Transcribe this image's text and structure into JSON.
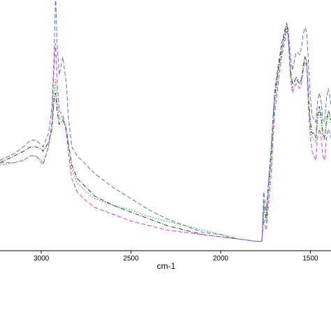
{
  "chart_data": {
    "type": "line",
    "title": "",
    "xlabel": "cm-1",
    "ylabel": "",
    "xlim": [
      3230,
      1385
    ],
    "ylim": [
      0,
      100
    ],
    "x_reversed": true,
    "grid": false,
    "x_ticks": [
      {
        "value": 3000,
        "label": "3000"
      },
      {
        "value": 2500,
        "label": "2500"
      },
      {
        "value": 2000,
        "label": "2000"
      },
      {
        "value": 1500,
        "label": "1500"
      }
    ],
    "series": [
      {
        "color": "#333333",
        "dash": "6,2,1,2",
        "points": [
          [
            3230,
            37
          ],
          [
            3150,
            40
          ],
          [
            3100,
            42
          ],
          [
            3060,
            44
          ],
          [
            3030,
            44
          ],
          [
            3000,
            43
          ],
          [
            2990,
            42
          ],
          [
            2960,
            46
          ],
          [
            2940,
            52
          ],
          [
            2930,
            64
          ],
          [
            2920,
            68
          ],
          [
            2912,
            60
          ],
          [
            2900,
            54
          ],
          [
            2880,
            56
          ],
          [
            2860,
            52
          ],
          [
            2850,
            46
          ],
          [
            2830,
            36
          ],
          [
            2800,
            30
          ],
          [
            2750,
            26
          ],
          [
            2700,
            22
          ],
          [
            2600,
            18
          ],
          [
            2500,
            15
          ],
          [
            2400,
            12
          ],
          [
            2300,
            9
          ],
          [
            2200,
            7
          ],
          [
            2100,
            5
          ],
          [
            2000,
            4
          ],
          [
            1900,
            3
          ],
          [
            1800,
            2
          ],
          [
            1770,
            2
          ],
          [
            1760,
            20
          ],
          [
            1750,
            14
          ],
          [
            1745,
            12
          ],
          [
            1740,
            20
          ],
          [
            1720,
            40
          ],
          [
            1700,
            66
          ],
          [
            1680,
            78
          ],
          [
            1660,
            88
          ],
          [
            1640,
            96
          ],
          [
            1632,
            98
          ],
          [
            1625,
            96
          ],
          [
            1610,
            78
          ],
          [
            1600,
            72
          ],
          [
            1590,
            73
          ],
          [
            1580,
            75
          ],
          [
            1570,
            73
          ],
          [
            1560,
            72
          ],
          [
            1550,
            74
          ],
          [
            1540,
            80
          ],
          [
            1530,
            84
          ],
          [
            1520,
            82
          ],
          [
            1510,
            66
          ],
          [
            1500,
            55
          ],
          [
            1490,
            50
          ],
          [
            1480,
            50
          ],
          [
            1470,
            48
          ],
          [
            1460,
            58
          ],
          [
            1450,
            62
          ],
          [
            1440,
            58
          ],
          [
            1430,
            50
          ],
          [
            1420,
            48
          ],
          [
            1410,
            56
          ],
          [
            1400,
            60
          ],
          [
            1390,
            58
          ],
          [
            1385,
            56
          ]
        ]
      },
      {
        "color": "#5a6fd0",
        "dash": "6,3",
        "points": [
          [
            3230,
            38
          ],
          [
            3150,
            41
          ],
          [
            3100,
            44
          ],
          [
            3060,
            47
          ],
          [
            3030,
            47
          ],
          [
            3000,
            45
          ],
          [
            2990,
            44
          ],
          [
            2960,
            50
          ],
          [
            2940,
            62
          ],
          [
            2930,
            82
          ],
          [
            2920,
            112
          ],
          [
            2912,
            90
          ],
          [
            2900,
            76
          ],
          [
            2880,
            84
          ],
          [
            2860,
            72
          ],
          [
            2850,
            58
          ],
          [
            2830,
            44
          ],
          [
            2800,
            40
          ],
          [
            2750,
            36
          ],
          [
            2700,
            32
          ],
          [
            2600,
            26
          ],
          [
            2500,
            21
          ],
          [
            2400,
            16
          ],
          [
            2300,
            12
          ],
          [
            2200,
            9
          ],
          [
            2100,
            6
          ],
          [
            2000,
            5
          ],
          [
            1900,
            3
          ],
          [
            1800,
            2
          ],
          [
            1770,
            2
          ],
          [
            1760,
            24
          ],
          [
            1750,
            18
          ],
          [
            1745,
            15
          ],
          [
            1740,
            22
          ],
          [
            1720,
            42
          ],
          [
            1700,
            68
          ],
          [
            1680,
            80
          ],
          [
            1660,
            90
          ],
          [
            1640,
            97
          ],
          [
            1632,
            99
          ],
          [
            1625,
            97
          ],
          [
            1610,
            84
          ],
          [
            1600,
            78
          ],
          [
            1590,
            82
          ],
          [
            1580,
            86
          ],
          [
            1570,
            86
          ],
          [
            1560,
            85
          ],
          [
            1550,
            88
          ],
          [
            1540,
            94
          ],
          [
            1530,
            97
          ],
          [
            1520,
            95
          ],
          [
            1510,
            80
          ],
          [
            1500,
            66
          ],
          [
            1490,
            58
          ],
          [
            1480,
            56
          ],
          [
            1470,
            55
          ],
          [
            1460,
            64
          ],
          [
            1450,
            68
          ],
          [
            1440,
            64
          ],
          [
            1430,
            56
          ],
          [
            1420,
            55
          ],
          [
            1410,
            66
          ],
          [
            1400,
            70
          ],
          [
            1390,
            66
          ],
          [
            1385,
            62
          ]
        ]
      },
      {
        "color": "#33b233",
        "dash": "2,2",
        "points": [
          [
            3230,
            36
          ],
          [
            3150,
            37
          ],
          [
            3100,
            38
          ],
          [
            3060,
            40
          ],
          [
            3030,
            40
          ],
          [
            3000,
            38
          ],
          [
            2990,
            37
          ],
          [
            2960,
            44
          ],
          [
            2940,
            52
          ],
          [
            2930,
            66
          ],
          [
            2920,
            74
          ],
          [
            2912,
            65
          ],
          [
            2900,
            56
          ],
          [
            2880,
            58
          ],
          [
            2860,
            52
          ],
          [
            2850,
            46
          ],
          [
            2830,
            34
          ],
          [
            2800,
            28
          ],
          [
            2750,
            24
          ],
          [
            2700,
            21
          ],
          [
            2600,
            18
          ],
          [
            2500,
            16
          ],
          [
            2400,
            13
          ],
          [
            2300,
            11
          ],
          [
            2200,
            9
          ],
          [
            2100,
            7
          ],
          [
            2000,
            5
          ],
          [
            1900,
            3
          ],
          [
            1800,
            2
          ],
          [
            1770,
            2
          ],
          [
            1760,
            16
          ],
          [
            1750,
            12
          ],
          [
            1745,
            10
          ],
          [
            1740,
            16
          ],
          [
            1720,
            36
          ],
          [
            1700,
            62
          ],
          [
            1680,
            76
          ],
          [
            1660,
            86
          ],
          [
            1640,
            94
          ],
          [
            1632,
            97
          ],
          [
            1625,
            95
          ],
          [
            1610,
            76
          ],
          [
            1600,
            70
          ],
          [
            1590,
            72
          ],
          [
            1580,
            75
          ],
          [
            1570,
            74
          ],
          [
            1560,
            73
          ],
          [
            1550,
            74
          ],
          [
            1540,
            80
          ],
          [
            1530,
            84
          ],
          [
            1520,
            82
          ],
          [
            1510,
            64
          ],
          [
            1500,
            52
          ],
          [
            1490,
            48
          ],
          [
            1480,
            47
          ],
          [
            1470,
            46
          ],
          [
            1460,
            56
          ],
          [
            1450,
            60
          ],
          [
            1440,
            56
          ],
          [
            1430,
            48
          ],
          [
            1420,
            47
          ],
          [
            1410,
            55
          ],
          [
            1400,
            58
          ],
          [
            1390,
            56
          ],
          [
            1385,
            54
          ]
        ]
      },
      {
        "color": "#cc44cc",
        "dash": "6,3",
        "points": [
          [
            3230,
            37
          ],
          [
            3150,
            37
          ],
          [
            3100,
            38
          ],
          [
            3060,
            40
          ],
          [
            3030,
            40
          ],
          [
            3000,
            37
          ],
          [
            2990,
            36
          ],
          [
            2960,
            44
          ],
          [
            2940,
            56
          ],
          [
            2930,
            78
          ],
          [
            2920,
            90
          ],
          [
            2912,
            74
          ],
          [
            2900,
            60
          ],
          [
            2880,
            58
          ],
          [
            2860,
            50
          ],
          [
            2850,
            42
          ],
          [
            2830,
            30
          ],
          [
            2800,
            24
          ],
          [
            2750,
            20
          ],
          [
            2700,
            17
          ],
          [
            2600,
            14
          ],
          [
            2500,
            11
          ],
          [
            2400,
            9
          ],
          [
            2300,
            7
          ],
          [
            2200,
            6
          ],
          [
            2100,
            5
          ],
          [
            2000,
            4
          ],
          [
            1900,
            3
          ],
          [
            1800,
            2
          ],
          [
            1770,
            2
          ],
          [
            1760,
            12
          ],
          [
            1750,
            8
          ],
          [
            1745,
            7
          ],
          [
            1740,
            12
          ],
          [
            1720,
            30
          ],
          [
            1700,
            58
          ],
          [
            1680,
            72
          ],
          [
            1660,
            84
          ],
          [
            1640,
            92
          ],
          [
            1632,
            96
          ],
          [
            1625,
            94
          ],
          [
            1610,
            74
          ],
          [
            1600,
            68
          ],
          [
            1590,
            70
          ],
          [
            1580,
            72
          ],
          [
            1570,
            71
          ],
          [
            1560,
            70
          ],
          [
            1550,
            72
          ],
          [
            1540,
            78
          ],
          [
            1530,
            82
          ],
          [
            1520,
            80
          ],
          [
            1510,
            60
          ],
          [
            1500,
            48
          ],
          [
            1490,
            42
          ],
          [
            1480,
            40
          ],
          [
            1470,
            38
          ],
          [
            1460,
            48
          ],
          [
            1450,
            52
          ],
          [
            1440,
            48
          ],
          [
            1430,
            40
          ],
          [
            1420,
            38
          ],
          [
            1410,
            48
          ],
          [
            1400,
            52
          ],
          [
            1390,
            50
          ],
          [
            1385,
            48
          ]
        ]
      }
    ]
  }
}
